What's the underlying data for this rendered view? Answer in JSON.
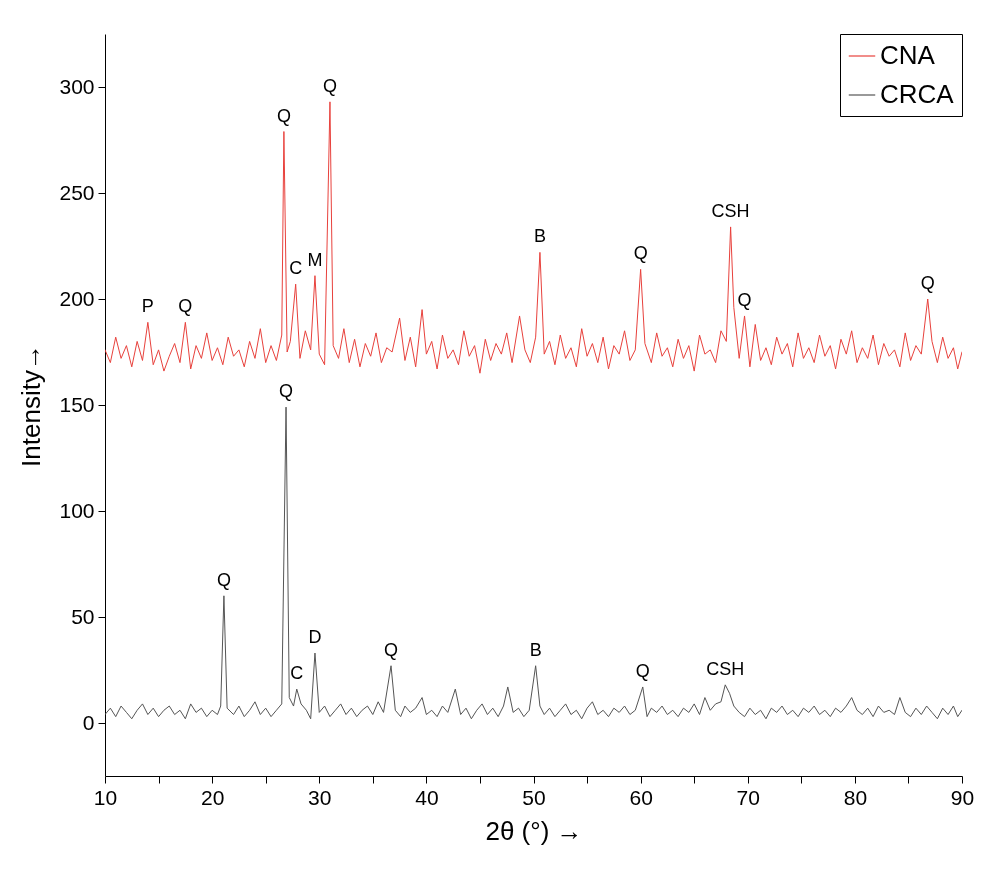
{
  "chart_data": {
    "type": "line",
    "xlabel": "2θ (°) →",
    "ylabel": "Intensity→",
    "xlim": [
      10,
      90
    ],
    "ylim": [
      -25,
      325
    ],
    "xticks": [
      10,
      {
        "value": 15,
        "label": null
      },
      20,
      {
        "value": 25,
        "label": null
      },
      30,
      {
        "value": 35,
        "label": null
      },
      40,
      {
        "value": 45,
        "label": null
      },
      50,
      {
        "value": 55,
        "label": null
      },
      60,
      {
        "value": 65,
        "label": null
      },
      70,
      {
        "value": 75,
        "label": null
      },
      80,
      {
        "value": 85,
        "label": null
      },
      90
    ],
    "yticks": [
      0,
      50,
      100,
      150,
      200,
      250,
      300
    ],
    "legend": "top right",
    "grid": false,
    "line_style": "solid",
    "marker": "none",
    "series": [
      {
        "name": "CNA",
        "color": "#e8413c",
        "x": [
          10,
          10.5,
          11,
          11.5,
          12,
          12.5,
          13,
          13.5,
          14,
          14.5,
          15,
          15.5,
          16,
          16.5,
          17,
          17.5,
          18,
          18.5,
          19,
          19.5,
          20,
          20.5,
          21,
          21.5,
          22,
          22.5,
          23,
          23.5,
          24,
          24.5,
          25,
          25.5,
          26,
          26.5,
          26.7,
          27,
          27.3,
          27.8,
          28.2,
          28.7,
          29.2,
          29.6,
          30,
          30.5,
          31,
          31.3,
          31.8,
          32.3,
          32.8,
          33.3,
          33.8,
          34.3,
          34.8,
          35.3,
          35.8,
          36.3,
          36.8,
          37.5,
          38,
          38.5,
          39,
          39.6,
          40,
          40.5,
          41,
          41.5,
          42,
          42.5,
          43,
          43.5,
          44,
          44.5,
          45,
          45.5,
          46,
          46.5,
          47,
          47.5,
          48,
          48.7,
          49.2,
          49.7,
          50.2,
          50.6,
          51,
          51.5,
          52,
          52.5,
          53,
          53.5,
          54,
          54.5,
          55,
          55.5,
          56,
          56.5,
          57,
          57.5,
          58,
          58.5,
          59,
          59.5,
          60,
          60.4,
          61,
          61.5,
          62,
          62.5,
          63,
          63.5,
          64,
          64.5,
          65,
          65.5,
          66,
          66.5,
          67,
          67.5,
          68,
          68.4,
          68.7,
          69.2,
          69.7,
          70.2,
          70.7,
          71.2,
          71.7,
          72.2,
          72.7,
          73.2,
          73.7,
          74.2,
          74.7,
          75.2,
          75.7,
          76.2,
          76.7,
          77.2,
          77.7,
          78.2,
          78.7,
          79.2,
          79.7,
          80.2,
          80.7,
          81.2,
          81.7,
          82.2,
          82.7,
          83.2,
          83.7,
          84.2,
          84.7,
          85.2,
          85.7,
          86.2,
          86.8,
          87.2,
          87.7,
          88.2,
          88.7,
          89.2,
          89.6,
          90
        ],
        "values": [
          176,
          170,
          182,
          172,
          178,
          168,
          180,
          171,
          189,
          169,
          176,
          166,
          173,
          179,
          170,
          189,
          167,
          178,
          172,
          184,
          171,
          177,
          169,
          182,
          173,
          176,
          168,
          180,
          172,
          186,
          170,
          178,
          171,
          183,
          279,
          175,
          180,
          207,
          172,
          185,
          176,
          211,
          174,
          169,
          293,
          178,
          172,
          186,
          170,
          181,
          168,
          179,
          173,
          184,
          170,
          177,
          175,
          191,
          171,
          182,
          168,
          195,
          174,
          180,
          167,
          183,
          172,
          176,
          169,
          185,
          173,
          178,
          165,
          181,
          171,
          179,
          174,
          184,
          170,
          192,
          176,
          170,
          182,
          222,
          174,
          180,
          169,
          183,
          172,
          177,
          168,
          186,
          173,
          179,
          170,
          182,
          167,
          178,
          174,
          185,
          171,
          176,
          214,
          179,
          170,
          184,
          173,
          177,
          168,
          181,
          172,
          178,
          166,
          183,
          174,
          176,
          170,
          185,
          180,
          234,
          196,
          172,
          192,
          168,
          188,
          171,
          177,
          169,
          182,
          174,
          179,
          168,
          184,
          172,
          177,
          170,
          183,
          173,
          178,
          167,
          181,
          174,
          185,
          170,
          177,
          172,
          183,
          169,
          179,
          173,
          176,
          168,
          184,
          171,
          178,
          174,
          200,
          180,
          170,
          182,
          172,
          177,
          167,
          175
        ]
      },
      {
        "name": "CRCA",
        "color": "#555555",
        "x": [
          10,
          10.5,
          11,
          11.5,
          12,
          12.5,
          13,
          13.5,
          14,
          14.5,
          15,
          15.5,
          16,
          16.5,
          17,
          17.5,
          18,
          18.5,
          19,
          19.5,
          20,
          20.5,
          20.8,
          21.1,
          21.4,
          22,
          22.5,
          23,
          23.5,
          24,
          24.5,
          25,
          25.5,
          26,
          26.5,
          26.9,
          27.2,
          27.6,
          27.9,
          28.3,
          28.8,
          29.2,
          29.6,
          30,
          30.5,
          31,
          31.5,
          32,
          32.5,
          33,
          33.5,
          34,
          34.5,
          35,
          35.5,
          36,
          36.7,
          37.1,
          37.6,
          38,
          38.5,
          39,
          39.6,
          40,
          40.5,
          41,
          41.5,
          42,
          42.7,
          43.2,
          43.7,
          44.2,
          44.7,
          45.2,
          45.7,
          46.2,
          46.7,
          47.2,
          47.6,
          48.1,
          48.6,
          49.1,
          49.6,
          50.2,
          50.6,
          51,
          51.5,
          52,
          52.5,
          53,
          53.5,
          54,
          54.5,
          55,
          55.5,
          56,
          56.5,
          57,
          57.5,
          58,
          58.5,
          59,
          59.5,
          60.2,
          60.6,
          61,
          61.5,
          62,
          62.5,
          63,
          63.5,
          64,
          64.5,
          65,
          65.5,
          66,
          66.5,
          67,
          67.5,
          67.9,
          68.3,
          68.7,
          69.2,
          69.7,
          70.2,
          70.7,
          71.2,
          71.7,
          72.2,
          72.7,
          73.2,
          73.7,
          74.2,
          74.7,
          75.2,
          75.7,
          76.2,
          76.7,
          77.2,
          77.7,
          78.2,
          78.7,
          79.2,
          79.7,
          80.2,
          80.7,
          81.2,
          81.7,
          82.2,
          82.7,
          83.2,
          83.7,
          84.2,
          84.7,
          85.2,
          85.7,
          86.2,
          86.7,
          87.2,
          87.7,
          88.2,
          88.7,
          89.2,
          89.6,
          90
        ],
        "values": [
          4,
          7,
          3,
          8,
          5,
          2,
          6,
          9,
          4,
          7,
          3,
          6,
          8,
          4,
          6,
          2,
          9,
          5,
          7,
          3,
          6,
          4,
          8,
          60,
          7,
          4,
          8,
          3,
          6,
          10,
          4,
          7,
          3,
          6,
          9,
          149,
          12,
          8,
          16,
          9,
          6,
          2,
          33,
          5,
          8,
          3,
          6,
          9,
          4,
          7,
          3,
          6,
          8,
          4,
          10,
          5,
          27,
          6,
          3,
          8,
          5,
          7,
          12,
          4,
          6,
          3,
          8,
          5,
          16,
          4,
          7,
          2,
          6,
          9,
          4,
          7,
          3,
          8,
          17,
          5,
          7,
          3,
          6,
          27,
          8,
          4,
          7,
          3,
          6,
          9,
          4,
          6,
          2,
          7,
          10,
          4,
          6,
          3,
          7,
          5,
          8,
          4,
          6,
          17,
          3,
          7,
          5,
          8,
          4,
          6,
          3,
          7,
          5,
          9,
          4,
          12,
          6,
          9,
          10,
          18,
          14,
          8,
          5,
          3,
          7,
          4,
          6,
          2,
          7,
          5,
          8,
          4,
          6,
          3,
          7,
          5,
          8,
          4,
          6,
          3,
          7,
          5,
          8,
          12,
          6,
          4,
          7,
          3,
          8,
          5,
          6,
          4,
          12,
          5,
          3,
          7,
          4,
          8,
          5,
          2,
          7,
          4,
          8,
          3,
          6
        ]
      }
    ],
    "annotations": [
      {
        "text": "P",
        "x": 14,
        "y": 189
      },
      {
        "text": "Q",
        "x": 17.5,
        "y": 189
      },
      {
        "text": "Q",
        "x": 26.7,
        "y": 279
      },
      {
        "text": "C",
        "x": 27.8,
        "y": 207
      },
      {
        "text": "M",
        "x": 29.6,
        "y": 211
      },
      {
        "text": "Q",
        "x": 31,
        "y": 293
      },
      {
        "text": "B",
        "x": 50.6,
        "y": 222
      },
      {
        "text": "Q",
        "x": 60,
        "y": 214
      },
      {
        "text": "CSH",
        "x": 68.4,
        "y": 234
      },
      {
        "text": "Q",
        "x": 69.7,
        "y": 192
      },
      {
        "text": "Q",
        "x": 86.8,
        "y": 200
      },
      {
        "text": "Q",
        "x": 21.1,
        "y": 60
      },
      {
        "text": "Q",
        "x": 26.9,
        "y": 149
      },
      {
        "text": "C",
        "x": 27.9,
        "y": 16
      },
      {
        "text": "D",
        "x": 29.6,
        "y": 33
      },
      {
        "text": "Q",
        "x": 36.7,
        "y": 27
      },
      {
        "text": "B",
        "x": 50.2,
        "y": 27
      },
      {
        "text": "Q",
        "x": 60.2,
        "y": 17
      },
      {
        "text": "CSH",
        "x": 67.9,
        "y": 18
      }
    ]
  }
}
